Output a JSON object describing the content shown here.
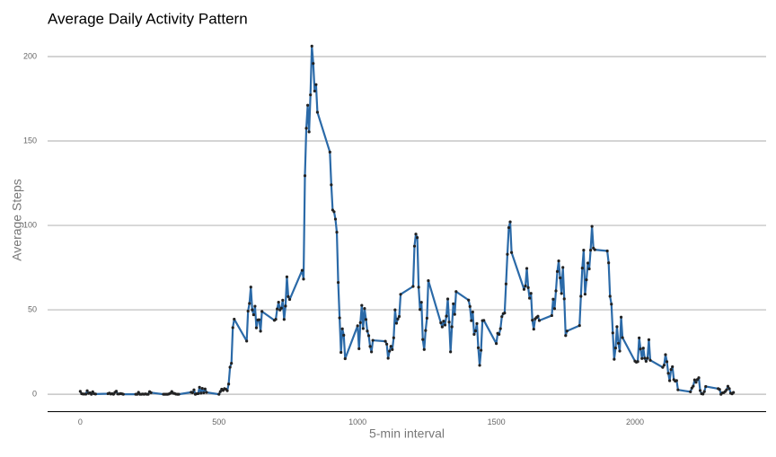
{
  "chart_data": {
    "type": "line",
    "title": "Average Daily Activity Pattern",
    "xlabel": "5-min interval",
    "ylabel": "Average Steps",
    "x": [
      0,
      5,
      10,
      15,
      20,
      25,
      30,
      35,
      40,
      45,
      50,
      55,
      100,
      105,
      110,
      115,
      120,
      125,
      130,
      135,
      140,
      145,
      150,
      155,
      200,
      205,
      210,
      215,
      220,
      225,
      230,
      235,
      240,
      245,
      250,
      255,
      300,
      305,
      310,
      315,
      320,
      325,
      330,
      335,
      340,
      345,
      350,
      355,
      400,
      405,
      410,
      415,
      420,
      425,
      430,
      435,
      440,
      445,
      450,
      455,
      500,
      505,
      510,
      515,
      520,
      525,
      530,
      535,
      540,
      545,
      550,
      555,
      600,
      605,
      610,
      615,
      620,
      625,
      630,
      635,
      640,
      645,
      650,
      655,
      700,
      705,
      710,
      715,
      720,
      725,
      730,
      735,
      740,
      745,
      750,
      755,
      800,
      805,
      810,
      815,
      820,
      825,
      830,
      835,
      840,
      845,
      850,
      855,
      900,
      905,
      910,
      915,
      920,
      925,
      930,
      935,
      940,
      945,
      950,
      955,
      1000,
      1005,
      1010,
      1015,
      1020,
      1025,
      1030,
      1035,
      1040,
      1045,
      1050,
      1055,
      1100,
      1105,
      1110,
      1115,
      1120,
      1125,
      1130,
      1135,
      1140,
      1145,
      1150,
      1155,
      1200,
      1205,
      1210,
      1215,
      1220,
      1225,
      1230,
      1235,
      1240,
      1245,
      1250,
      1255,
      1300,
      1305,
      1310,
      1315,
      1320,
      1325,
      1330,
      1335,
      1340,
      1345,
      1350,
      1355,
      1400,
      1405,
      1410,
      1415,
      1420,
      1425,
      1430,
      1435,
      1440,
      1445,
      1450,
      1455,
      1500,
      1505,
      1510,
      1515,
      1520,
      1525,
      1530,
      1535,
      1540,
      1545,
      1550,
      1555,
      1600,
      1605,
      1610,
      1615,
      1620,
      1625,
      1630,
      1635,
      1640,
      1645,
      1650,
      1655,
      1700,
      1705,
      1710,
      1715,
      1720,
      1725,
      1730,
      1735,
      1740,
      1745,
      1750,
      1755,
      1800,
      1805,
      1810,
      1815,
      1820,
      1825,
      1830,
      1835,
      1840,
      1845,
      1850,
      1855,
      1900,
      1905,
      1910,
      1915,
      1920,
      1925,
      1930,
      1935,
      1940,
      1945,
      1950,
      1955,
      2000,
      2005,
      2010,
      2015,
      2020,
      2025,
      2030,
      2035,
      2040,
      2045,
      2050,
      2055,
      2100,
      2105,
      2110,
      2115,
      2120,
      2125,
      2130,
      2135,
      2140,
      2145,
      2150,
      2155,
      2200,
      2205,
      2210,
      2215,
      2220,
      2225,
      2230,
      2235,
      2240,
      2245,
      2250,
      2255,
      2300,
      2305,
      2310,
      2315,
      2320,
      2325,
      2330,
      2335,
      2340,
      2345,
      2350,
      2355
    ],
    "series": [
      {
        "color": "#2b6aa8",
        "values": [
          1.72,
          0.34,
          0.13,
          0.15,
          0.08,
          2.09,
          0.53,
          0.87,
          0,
          1.47,
          0.3,
          0.13,
          0.32,
          0.68,
          0.15,
          0.34,
          0,
          1.11,
          1.83,
          0.17,
          0.17,
          0.38,
          0.26,
          0,
          0,
          0,
          1.11,
          0,
          0,
          0.13,
          0,
          0.23,
          0,
          0,
          1.55,
          0.94,
          0,
          0,
          0,
          0,
          0.21,
          0.62,
          1.62,
          0.58,
          0.49,
          0.08,
          0,
          0,
          1.19,
          0.94,
          2.57,
          0,
          0.34,
          0.36,
          4.11,
          0.66,
          3.49,
          0.83,
          3.11,
          1.11,
          0,
          1.57,
          3,
          2.25,
          3.32,
          2.96,
          2.09,
          6.06,
          16.02,
          18.34,
          39.45,
          44.49,
          31.49,
          49.26,
          53.77,
          63.45,
          49.96,
          47.08,
          52.15,
          39.34,
          44.02,
          44.17,
          37.36,
          49.04,
          43.81,
          44.38,
          50.51,
          54.51,
          49.92,
          50.98,
          55.68,
          44.32,
          52.26,
          69.55,
          57.85,
          56.15,
          73.38,
          68.21,
          129.43,
          157.53,
          171.15,
          155.4,
          177.3,
          206.17,
          195.92,
          179.57,
          183.4,
          167.02,
          143.45,
          124.04,
          109.11,
          108.11,
          103.72,
          95.96,
          66.21,
          45.23,
          24.79,
          38.75,
          34.98,
          21.06,
          40.57,
          26.98,
          42.42,
          52.66,
          38.92,
          50.79,
          44.28,
          37.42,
          34.7,
          28.34,
          25.09,
          31.94,
          31.36,
          29.68,
          21.32,
          25.55,
          28.38,
          26.47,
          33.43,
          49.98,
          42.04,
          44.6,
          46.04,
          59.19,
          63.87,
          87.7,
          94.85,
          92.77,
          63.4,
          50.17,
          54.47,
          32.42,
          26.53,
          37.74,
          45.06,
          67.28,
          42.34,
          39.89,
          43.26,
          40.98,
          46.25,
          56.43,
          42.75,
          25.13,
          39.96,
          53.55,
          47.32,
          60.81,
          55.75,
          51.96,
          43.58,
          48.7,
          35.47,
          37.55,
          41.85,
          27.51,
          17.11,
          26.08,
          43.62,
          43.77,
          30.02,
          36.08,
          35.49,
          38.85,
          45.96,
          47.75,
          48.13,
          65.32,
          82.91,
          98.66,
          102.11,
          83.96,
          62.13,
          64.13,
          74.55,
          63.17,
          56.91,
          59.77,
          43.87,
          38.57,
          44.66,
          45.45,
          46.21,
          43.68,
          46.62,
          56.3,
          50.72,
          61.23,
          72.72,
          78.94,
          68.94,
          59.66,
          75.09,
          56.51,
          34.77,
          37.45,
          40.68,
          58.02,
          74.7,
          85.32,
          59.26,
          67.77,
          77.7,
          74.25,
          85.34,
          99.45,
          86.58,
          85.6,
          84.87,
          77.83,
          58.04,
          53.36,
          36.32,
          20.72,
          27.4,
          40.02,
          30.21,
          25.55,
          45.66,
          33.53,
          19.62,
          19.02,
          19.34,
          33.34,
          26.81,
          21.17,
          27.3,
          21.34,
          19.55,
          21.32,
          32.3,
          20.15,
          15.94,
          17.23,
          23.45,
          19.25,
          12.45,
          8.02,
          14.66,
          16.3,
          8.68,
          7.79,
          8.13,
          2.62,
          1.45,
          3.68,
          4.81,
          8.51,
          7.08,
          8.7,
          9.75,
          2.21,
          0.32,
          0.11,
          1.6,
          4.6,
          3.3,
          2.85,
          0,
          0.83,
          0.96,
          1.58,
          2.6,
          4.7,
          3.3,
          0.64,
          0.23,
          1.08
        ]
      }
    ],
    "xlim": [
      -117.75,
      2472.75
    ],
    "xticks": [
      0,
      500,
      1000,
      1500,
      2000
    ],
    "ylim": [
      -10.31,
      216.48
    ],
    "yticks": [
      0,
      50,
      100,
      150,
      200
    ],
    "grid": true
  }
}
